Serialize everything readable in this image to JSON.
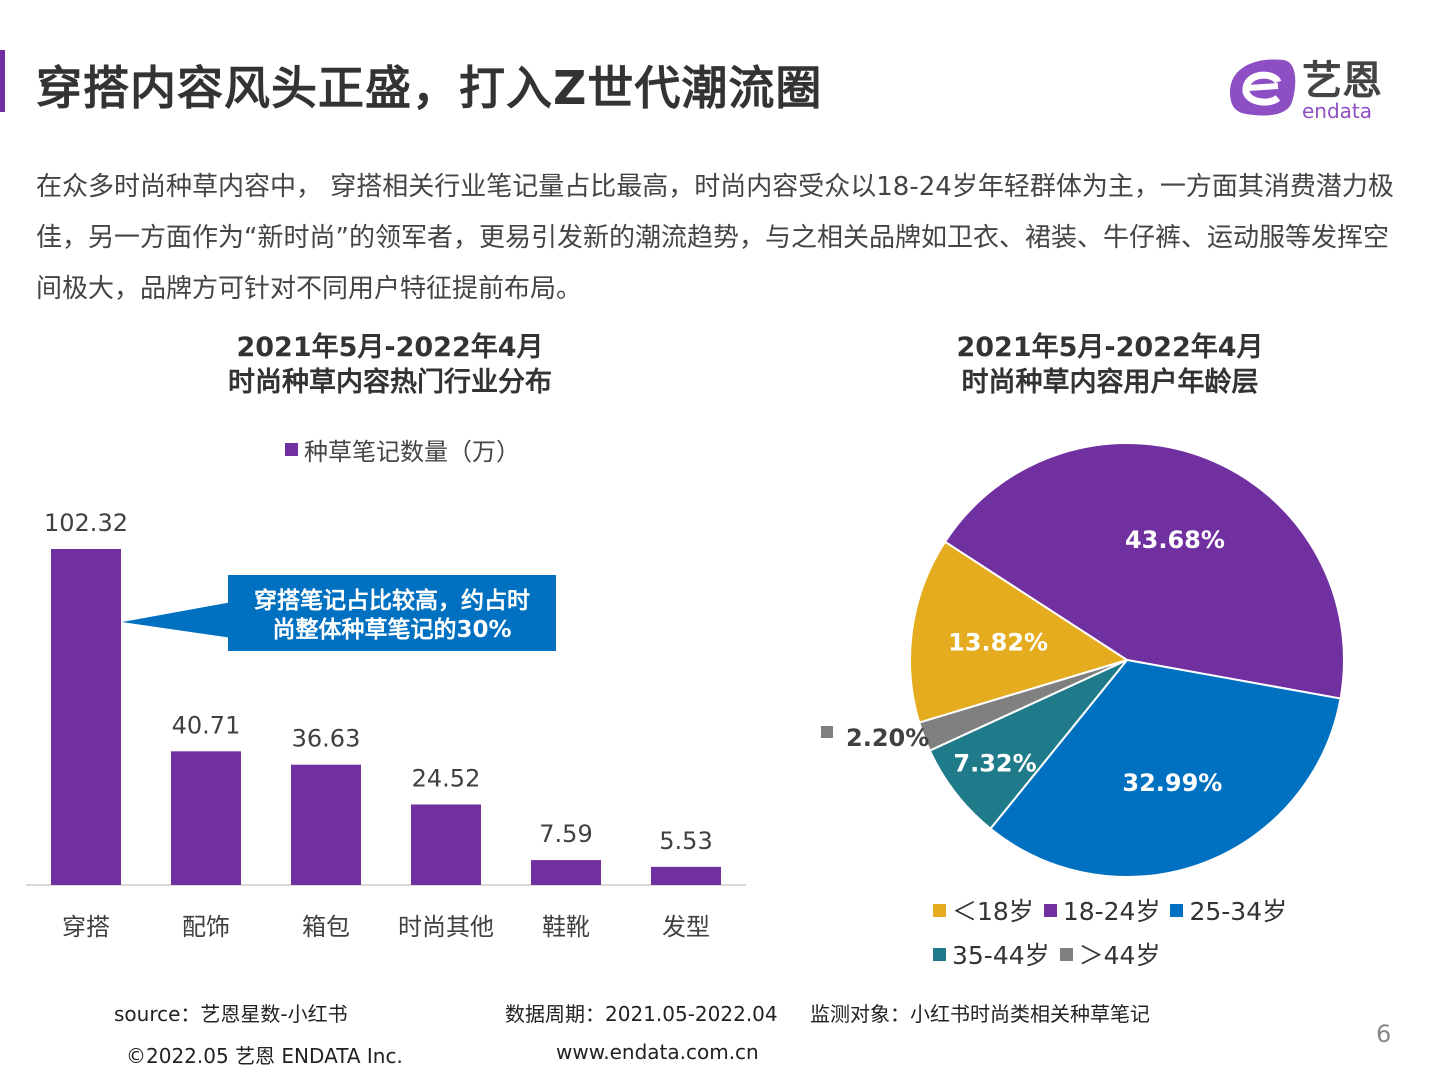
{
  "header": {
    "title": "穿搭内容风头正盛，打入Z世代潮流圈",
    "logo_text": "艺恩 endata"
  },
  "intro": "在众多时尚种草内容中， 穿搭相关行业笔记量占比最高，时尚内容受众以18-24岁年轻群体为主，一方面其消费潜力极佳，另一方面作为“新时尚”的领军者，更易引发新的潮流趋势，与之相关品牌如卫衣、裙装、牛仔裤、运动服等发挥空间极大，品牌方可针对不同用户特征提前布局。",
  "chart_data": [
    {
      "type": "bar",
      "title": "2021年5月-2022年4月\n时尚种草内容热门行业分布",
      "title_lines": [
        "2021年5月-2022年4月",
        "时尚种草内容热门行业分布"
      ],
      "categories": [
        "穿搭",
        "配饰",
        "箱包",
        "时尚其他",
        "鞋靴",
        "发型"
      ],
      "series": [
        {
          "name": "种草笔记数量（万）",
          "values": [
            102.32,
            40.71,
            36.63,
            24.52,
            7.59,
            5.53
          ],
          "labels": [
            "102.32",
            "40.71",
            "36.63",
            "24.52",
            "7.59",
            "5.53"
          ]
        }
      ],
      "color": "#7030a0",
      "ylim": [
        0,
        110
      ],
      "grid": false,
      "legend": "top",
      "annotation": {
        "text_lines": [
          "穿搭笔记占比较高，约占时",
          "尚整体种草笔记的30%"
        ],
        "color": "#0070c0",
        "target": "穿搭"
      }
    },
    {
      "type": "pie",
      "title_lines": [
        "2021年5月-2022年4月",
        "时尚种草内容用户年龄层"
      ],
      "slices": [
        {
          "name": "18-24岁",
          "value": 43.68,
          "label": "43.68%",
          "color": "#7030a0"
        },
        {
          "name": "25-34岁",
          "value": 32.99,
          "label": "32.99%",
          "color": "#0070c0"
        },
        {
          "name": "35-44岁",
          "value": 7.32,
          "label": "7.32%",
          "color": "#1f7b89"
        },
        {
          "name": "＞44岁",
          "value": 2.2,
          "label": "2.20%",
          "color": "#808080"
        },
        {
          "name": "＜18岁",
          "value": 13.82,
          "label": "13.82%",
          "color": "#e4ac1e"
        }
      ],
      "legend_order": [
        "＜18岁",
        "18-24岁",
        "25-34岁",
        "35-44岁",
        "＞44岁"
      ],
      "legend": "bottom"
    }
  ],
  "footer": {
    "source": "source：艺恩星数-小红书",
    "period": "数据周期：2021.05-2022.04",
    "target": "监测对象：小红书时尚类相关种草笔记",
    "copyright": "©2022.05 艺恩 ENDATA Inc.",
    "website": "www.endata.com.cn",
    "page": "6"
  }
}
